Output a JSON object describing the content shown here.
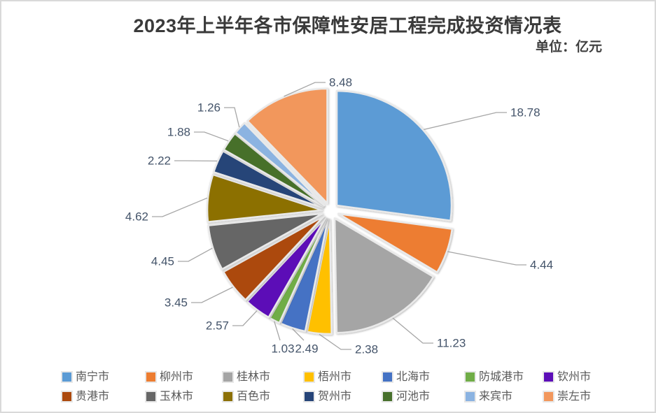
{
  "header": {
    "title": "2023年上半年各市保障性安居工程完成投资情况表",
    "unit_label": "单位：亿元"
  },
  "chart_data": {
    "type": "pie",
    "title": "2023年上半年各市保障性安居工程完成投资情况表",
    "unit": "亿元",
    "categories": [
      "南宁市",
      "柳州市",
      "桂林市",
      "梧州市",
      "北海市",
      "防城港市",
      "钦州市",
      "贵港市",
      "玉林市",
      "百色市",
      "贺州市",
      "河池市",
      "来宾市",
      "崇左市"
    ],
    "values": [
      18.78,
      4.44,
      11.23,
      2.38,
      2.49,
      1.03,
      2.57,
      3.45,
      4.45,
      4.62,
      2.22,
      1.88,
      1.26,
      8.48
    ],
    "colors": [
      "#5B9BD5",
      "#ED7D31",
      "#A5A5A5",
      "#FFC000",
      "#4472C4",
      "#70AD47",
      "#5C0EB7",
      "#AC4A0E",
      "#666666",
      "#8C7006",
      "#264478",
      "#47702C",
      "#8BB3E1",
      "#F2975C"
    ],
    "total": 69.28,
    "start_angle_deg": 0,
    "direction": "clockwise",
    "exploded": true,
    "data_labels": "outside-with-leader-lines",
    "label_decimals": 2,
    "legend_position": "bottom",
    "grid": false
  }
}
